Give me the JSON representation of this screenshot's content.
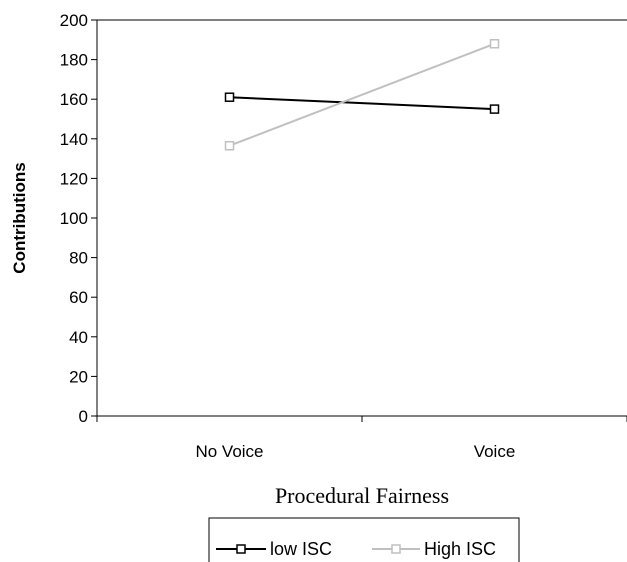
{
  "chart_data": {
    "type": "line",
    "categories": [
      "No Voice",
      "Voice"
    ],
    "xlabel": "Procedural Fairness",
    "ylabel": "Contributions",
    "ylim": [
      0,
      200
    ],
    "yticks": [
      0,
      20,
      40,
      60,
      80,
      100,
      120,
      140,
      160,
      180,
      200
    ],
    "grid": false,
    "legend_position": "bottom",
    "series": [
      {
        "name": "low ISC",
        "values": [
          161,
          155
        ],
        "color": "#000000",
        "marker": "square"
      },
      {
        "name": "High ISC",
        "values": [
          136.5,
          188
        ],
        "color": "#c0c0c0",
        "marker": "square"
      }
    ]
  }
}
